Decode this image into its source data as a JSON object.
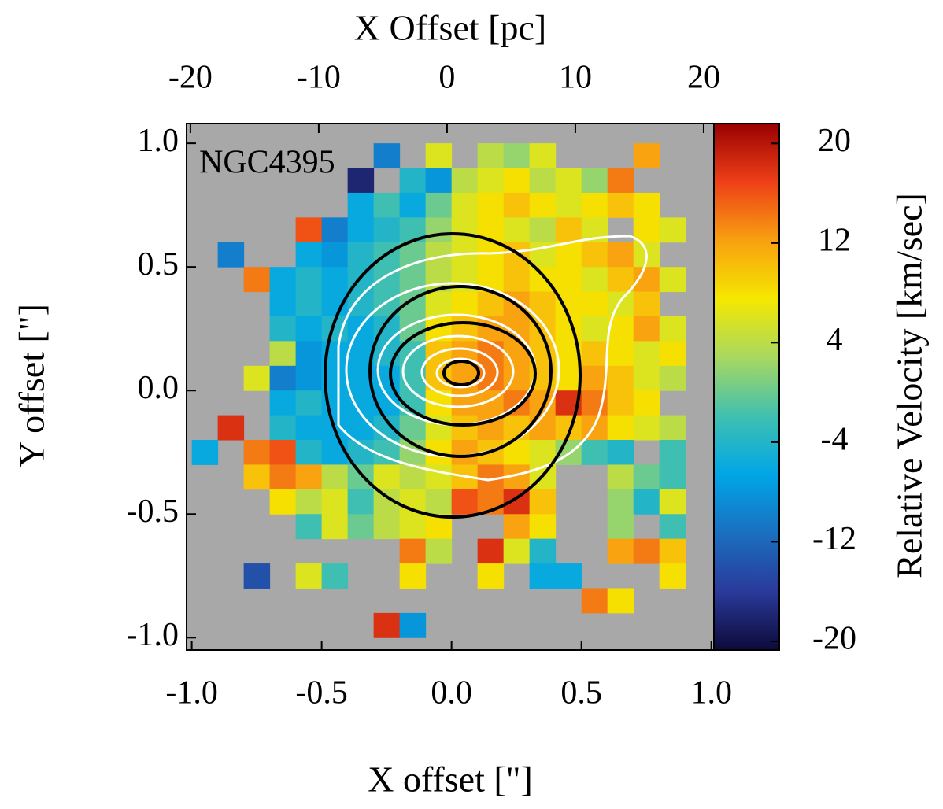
{
  "chart_data": {
    "type": "heatmap",
    "title": "X Offset [pc]",
    "x_label": "X offset [\"]",
    "y_label": "Y offset [\"]",
    "colorbar_label": "Relative Velocity [km/sec]",
    "annotation": "NGC4395",
    "xlim": [
      -1.02,
      1.01
    ],
    "ylim": [
      -1.05,
      1.08
    ],
    "xticks": [
      {
        "value": -1.0,
        "label": "-1.0"
      },
      {
        "value": -0.5,
        "label": "-0.5"
      },
      {
        "value": 0.0,
        "label": "0.0"
      },
      {
        "value": 0.5,
        "label": "0.5"
      },
      {
        "value": 1.0,
        "label": "1.0"
      }
    ],
    "yticks": [
      {
        "value": -1.0,
        "label": "-1.0"
      },
      {
        "value": -0.5,
        "label": "-0.5"
      },
      {
        "value": 0.0,
        "label": "0.0"
      },
      {
        "value": 0.5,
        "label": "0.5"
      },
      {
        "value": 1.0,
        "label": "1.0"
      }
    ],
    "x2lim": [
      -20.3,
      20.8
    ],
    "x2ticks": [
      -20,
      -10,
      0,
      10,
      20
    ],
    "clim": [
      -20.7,
      21.6
    ],
    "cticks": [
      -20,
      -12,
      -4,
      4,
      12,
      20
    ],
    "colormap": [
      "#0d0a3a",
      "#2a3a9a",
      "#1a6fc0",
      "#00a6e6",
      "#40c0b0",
      "#a8d860",
      "#f5e800",
      "#f8a010",
      "#ee4018",
      "#9a0000"
    ],
    "background": "#a8a8a8",
    "x": [
      -0.95,
      -0.85,
      -0.75,
      -0.65,
      -0.55,
      -0.45,
      -0.35,
      -0.25,
      -0.15,
      -0.05,
      0.05,
      0.15,
      0.25,
      0.35,
      0.45,
      0.55,
      0.65,
      0.75,
      0.85,
      0.95
    ],
    "y": [
      0.95,
      0.85,
      0.75,
      0.65,
      0.55,
      0.45,
      0.35,
      0.25,
      0.15,
      0.05,
      -0.05,
      -0.15,
      -0.25,
      -0.35,
      -0.45,
      -0.55,
      -0.65,
      -0.75,
      -0.85,
      -0.95
    ],
    "z": [
      [
        null,
        null,
        null,
        null,
        null,
        null,
        null,
        -10,
        null,
        6,
        null,
        4,
        2,
        6,
        null,
        null,
        null,
        12,
        null,
        null
      ],
      [
        null,
        null,
        null,
        null,
        null,
        null,
        -18,
        null,
        -4,
        -8,
        4,
        6,
        8,
        4,
        6,
        2,
        14,
        null,
        null,
        null
      ],
      [
        null,
        null,
        null,
        null,
        null,
        null,
        -6,
        -2,
        -6,
        0,
        6,
        8,
        10,
        8,
        6,
        8,
        10,
        8,
        null,
        null
      ],
      [
        null,
        null,
        null,
        null,
        16,
        -10,
        -6,
        -4,
        -2,
        2,
        6,
        8,
        6,
        4,
        10,
        6,
        null,
        8,
        6,
        null
      ],
      [
        null,
        -10,
        null,
        null,
        -6,
        -8,
        -4,
        -2,
        0,
        4,
        6,
        8,
        10,
        6,
        8,
        10,
        12,
        6,
        null,
        null
      ],
      [
        null,
        null,
        14,
        -6,
        -4,
        -6,
        -4,
        -2,
        0,
        4,
        6,
        8,
        10,
        8,
        8,
        6,
        10,
        12,
        6,
        null
      ],
      [
        null,
        null,
        null,
        -6,
        -4,
        -6,
        -4,
        -2,
        0,
        6,
        8,
        10,
        12,
        10,
        8,
        8,
        6,
        10,
        null,
        null
      ],
      [
        null,
        null,
        null,
        -4,
        -6,
        -4,
        -6,
        -4,
        0,
        8,
        10,
        12,
        12,
        10,
        8,
        6,
        8,
        12,
        6,
        null
      ],
      [
        null,
        null,
        null,
        4,
        -8,
        -6,
        -6,
        -4,
        -2,
        10,
        12,
        14,
        12,
        10,
        8,
        10,
        8,
        6,
        8,
        null
      ],
      [
        null,
        null,
        6,
        -10,
        -8,
        -6,
        -6,
        -6,
        -2,
        10,
        12,
        14,
        12,
        10,
        8,
        12,
        10,
        6,
        4,
        null
      ],
      [
        null,
        null,
        null,
        -6,
        -4,
        -6,
        -6,
        -6,
        -2,
        8,
        12,
        12,
        14,
        12,
        18,
        14,
        10,
        8,
        null,
        null
      ],
      [
        null,
        18,
        null,
        -4,
        -6,
        -6,
        -6,
        -4,
        0,
        6,
        10,
        12,
        10,
        12,
        10,
        12,
        8,
        6,
        4,
        null
      ],
      [
        -6,
        null,
        14,
        16,
        -4,
        -6,
        -4,
        -2,
        2,
        8,
        12,
        10,
        8,
        6,
        2,
        -2,
        -4,
        null,
        -2,
        null
      ],
      [
        null,
        null,
        10,
        14,
        12,
        4,
        0,
        6,
        4,
        6,
        10,
        14,
        12,
        6,
        null,
        null,
        4,
        0,
        -2,
        null
      ],
      [
        null,
        null,
        null,
        8,
        4,
        6,
        -2,
        4,
        6,
        4,
        16,
        14,
        18,
        10,
        null,
        null,
        2,
        -4,
        6,
        null
      ],
      [
        null,
        null,
        null,
        null,
        -2,
        6,
        0,
        4,
        6,
        8,
        null,
        null,
        12,
        8,
        null,
        null,
        2,
        null,
        -2,
        null
      ],
      [
        null,
        null,
        null,
        null,
        null,
        null,
        null,
        null,
        14,
        4,
        null,
        18,
        6,
        -4,
        null,
        null,
        12,
        14,
        10,
        null
      ],
      [
        null,
        null,
        -14,
        null,
        6,
        -2,
        null,
        null,
        8,
        null,
        null,
        8,
        null,
        -6,
        -6,
        null,
        null,
        null,
        8,
        null
      ],
      [
        null,
        null,
        null,
        null,
        null,
        null,
        null,
        null,
        null,
        null,
        null,
        null,
        null,
        null,
        null,
        14,
        8,
        null,
        null,
        null
      ],
      [
        null,
        null,
        null,
        null,
        null,
        null,
        null,
        18,
        -8,
        null,
        null,
        null,
        null,
        null,
        null,
        null,
        null,
        null,
        null,
        null
      ]
    ]
  }
}
